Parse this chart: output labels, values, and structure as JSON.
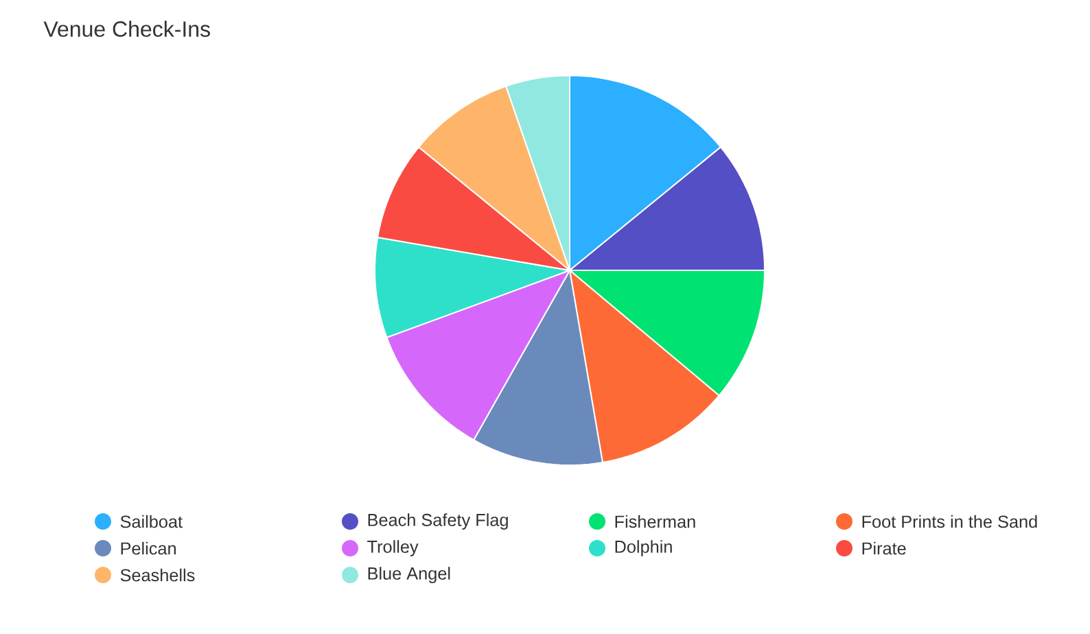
{
  "chart_data": {
    "type": "pie",
    "title": "Venue Check-Ins",
    "categories": [
      "Sailboat",
      "Beach Safety Flag",
      "Fisherman",
      "Foot Prints in the Sand",
      "Pelican",
      "Trolley",
      "Dolphin",
      "Pirate",
      "Seashells",
      "Blue Angel"
    ],
    "values": [
      14.1,
      10.9,
      11.1,
      11.2,
      10.9,
      11.2,
      8.3,
      8.2,
      8.8,
      5.3
    ],
    "colors": [
      "#2caffe",
      "#544fc5",
      "#00e272",
      "#fe6a35",
      "#6b8abc",
      "#d568fb",
      "#2ee0ca",
      "#fa4b42",
      "#feb56a",
      "#91e8e1"
    ],
    "legend": "bottom"
  }
}
